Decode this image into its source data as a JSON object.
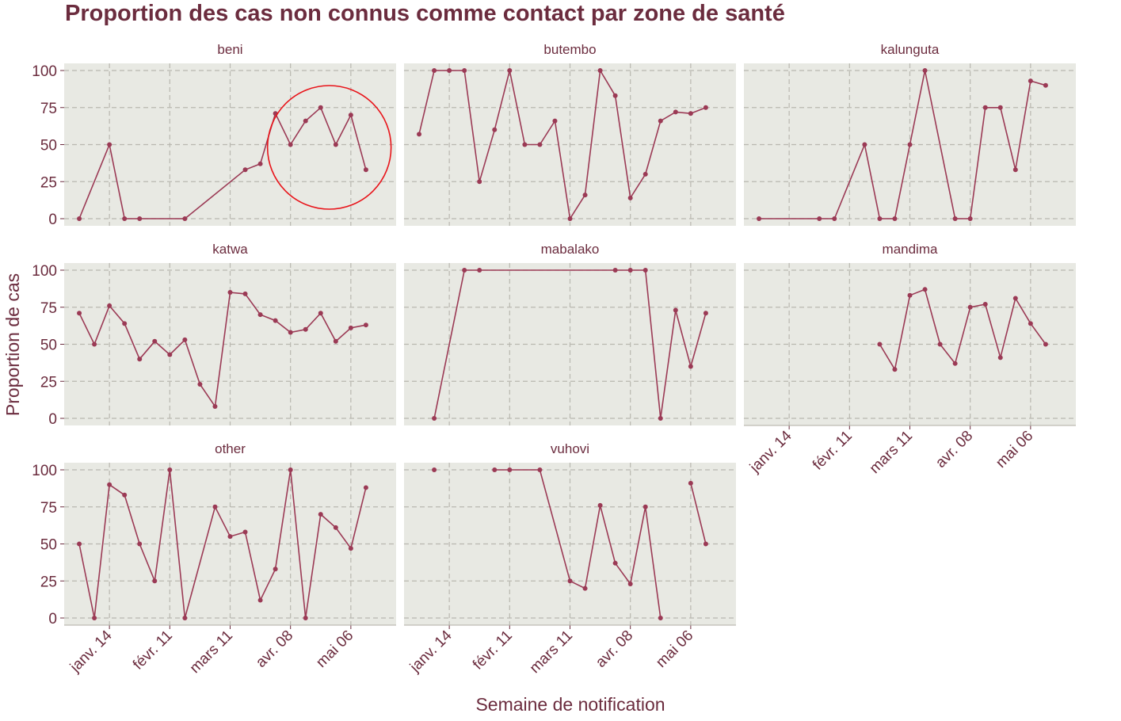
{
  "chart_data": {
    "type": "line",
    "title": "Proportion des cas non connus comme contact par zone de santé",
    "xlabel": "Semaine de notification",
    "ylabel": "Proportion de cas",
    "ylim": [
      0,
      100
    ],
    "yticks": [
      0,
      25,
      50,
      75,
      100
    ],
    "xlim": [
      "2018-12-24",
      "2019-05-27"
    ],
    "xticks": [
      "2019-01-14",
      "2019-02-11",
      "2019-03-11",
      "2019-04-08",
      "2019-05-06"
    ],
    "xtick_labels": [
      "janv. 14",
      "févr. 11",
      "mars 11",
      "avr. 08",
      "mai 06"
    ],
    "grid": true,
    "color": "#9b3a55",
    "panel_background": "#e8e9e3",
    "highlight": {
      "panel": "beni",
      "shape": "circle",
      "color": "#e8141a"
    },
    "panels": [
      {
        "name": "beni",
        "points": [
          [
            "2018-12-31",
            0
          ],
          [
            "2019-01-14",
            50
          ],
          [
            "2019-01-21",
            0
          ],
          [
            "2019-01-28",
            0
          ],
          [
            "2019-02-18",
            0
          ],
          [
            "2019-03-18",
            33
          ],
          [
            "2019-03-25",
            37
          ],
          [
            "2019-04-01",
            71
          ],
          [
            "2019-04-08",
            50
          ],
          [
            "2019-04-15",
            66
          ],
          [
            "2019-04-22",
            75
          ],
          [
            "2019-04-29",
            50
          ],
          [
            "2019-05-06",
            70
          ],
          [
            "2019-05-13",
            33
          ]
        ]
      },
      {
        "name": "butembo",
        "points": [
          [
            "2018-12-31",
            57
          ],
          [
            "2019-01-07",
            100
          ],
          [
            "2019-01-14",
            100
          ],
          [
            "2019-01-21",
            100
          ],
          [
            "2019-01-28",
            25
          ],
          [
            "2019-02-04",
            60
          ],
          [
            "2019-02-11",
            100
          ],
          [
            "2019-02-18",
            50
          ],
          [
            "2019-02-25",
            50
          ],
          [
            "2019-03-04",
            66
          ],
          [
            "2019-03-11",
            0
          ],
          [
            "2019-03-18",
            16
          ],
          [
            "2019-03-25",
            100
          ],
          [
            "2019-04-01",
            83
          ],
          [
            "2019-04-08",
            14
          ],
          [
            "2019-04-15",
            30
          ],
          [
            "2019-04-22",
            66
          ],
          [
            "2019-04-29",
            72
          ],
          [
            "2019-05-06",
            71
          ],
          [
            "2019-05-13",
            75
          ]
        ]
      },
      {
        "name": "kalunguta",
        "points": [
          [
            "2018-12-31",
            0
          ],
          [
            "2019-01-28",
            0
          ],
          [
            "2019-02-04",
            0
          ],
          [
            "2019-02-18",
            50
          ],
          [
            "2019-02-25",
            0
          ],
          [
            "2019-03-04",
            0
          ],
          [
            "2019-03-11",
            50
          ],
          [
            "2019-03-18",
            100
          ],
          [
            "2019-04-01",
            0
          ],
          [
            "2019-04-08",
            0
          ],
          [
            "2019-04-15",
            75
          ],
          [
            "2019-04-22",
            75
          ],
          [
            "2019-04-29",
            33
          ],
          [
            "2019-05-06",
            93
          ],
          [
            "2019-05-13",
            90
          ]
        ]
      },
      {
        "name": "katwa",
        "points": [
          [
            "2018-12-31",
            71
          ],
          [
            "2019-01-07",
            50
          ],
          [
            "2019-01-14",
            76
          ],
          [
            "2019-01-21",
            64
          ],
          [
            "2019-01-28",
            40
          ],
          [
            "2019-02-04",
            52
          ],
          [
            "2019-02-11",
            43
          ],
          [
            "2019-02-18",
            53
          ],
          [
            "2019-02-25",
            23
          ],
          [
            "2019-03-04",
            8
          ],
          [
            "2019-03-11",
            85
          ],
          [
            "2019-03-18",
            84
          ],
          [
            "2019-03-25",
            70
          ],
          [
            "2019-04-01",
            66
          ],
          [
            "2019-04-08",
            58
          ],
          [
            "2019-04-15",
            60
          ],
          [
            "2019-04-22",
            71
          ],
          [
            "2019-04-29",
            52
          ],
          [
            "2019-05-06",
            61
          ],
          [
            "2019-05-13",
            63
          ]
        ]
      },
      {
        "name": "mabalako",
        "points": [
          [
            "2019-01-07",
            0
          ],
          [
            "2019-01-21",
            100
          ],
          [
            "2019-01-28",
            100
          ],
          [
            "2019-04-01",
            100
          ],
          [
            "2019-04-08",
            100
          ],
          [
            "2019-04-15",
            100
          ],
          [
            "2019-04-22",
            0
          ],
          [
            "2019-04-29",
            73
          ],
          [
            "2019-05-06",
            35
          ],
          [
            "2019-05-13",
            71
          ]
        ]
      },
      {
        "name": "mandima",
        "points": [
          [
            "2019-02-25",
            50
          ],
          [
            "2019-03-04",
            33
          ],
          [
            "2019-03-11",
            83
          ],
          [
            "2019-03-18",
            87
          ],
          [
            "2019-03-25",
            50
          ],
          [
            "2019-04-01",
            37
          ],
          [
            "2019-04-08",
            75
          ],
          [
            "2019-04-15",
            77
          ],
          [
            "2019-04-22",
            41
          ],
          [
            "2019-04-29",
            81
          ],
          [
            "2019-05-06",
            64
          ],
          [
            "2019-05-13",
            50
          ]
        ]
      },
      {
        "name": "other",
        "points": [
          [
            "2018-12-31",
            50
          ],
          [
            "2019-01-07",
            0
          ],
          [
            "2019-01-14",
            90
          ],
          [
            "2019-01-21",
            83
          ],
          [
            "2019-01-28",
            50
          ],
          [
            "2019-02-04",
            25
          ],
          [
            "2019-02-11",
            100
          ],
          [
            "2019-02-18",
            0
          ],
          [
            "2019-03-04",
            75
          ],
          [
            "2019-03-11",
            55
          ],
          [
            "2019-03-18",
            58
          ],
          [
            "2019-03-25",
            12
          ],
          [
            "2019-04-01",
            33
          ],
          [
            "2019-04-08",
            100
          ],
          [
            "2019-04-15",
            0
          ],
          [
            "2019-04-22",
            70
          ],
          [
            "2019-04-29",
            61
          ],
          [
            "2019-05-06",
            47
          ],
          [
            "2019-05-13",
            88
          ]
        ]
      },
      {
        "name": "vuhovi",
        "points": [
          [
            "2019-01-07",
            100
          ],
          null,
          [
            "2019-02-04",
            100
          ],
          [
            "2019-02-11",
            100
          ],
          [
            "2019-02-25",
            100
          ],
          [
            "2019-03-11",
            25
          ],
          [
            "2019-03-18",
            20
          ],
          [
            "2019-03-25",
            76
          ],
          [
            "2019-04-01",
            37
          ],
          [
            "2019-04-08",
            23
          ],
          [
            "2019-04-15",
            75
          ],
          [
            "2019-04-22",
            0
          ],
          null,
          [
            "2019-05-06",
            91
          ],
          [
            "2019-05-13",
            50
          ]
        ]
      }
    ]
  }
}
